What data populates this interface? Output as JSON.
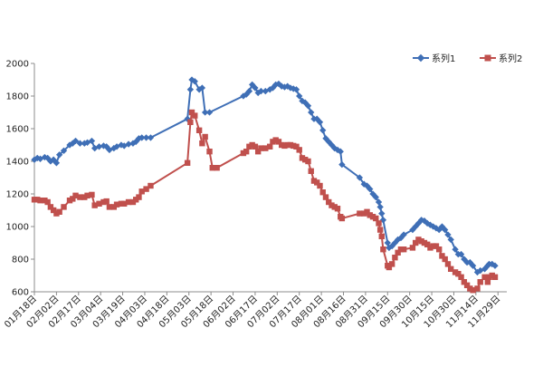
{
  "chart_data": {
    "type": "line",
    "title": "",
    "xlabel": "",
    "ylabel": "",
    "ylim": [
      600,
      2000
    ],
    "yticks": [
      600,
      800,
      1000,
      1200,
      1400,
      1600,
      1800,
      2000
    ],
    "grid": false,
    "legend": "top-right",
    "x_tick_labels": [
      "01月18日",
      "02月02日",
      "02月17日",
      "03月04日",
      "03月19日",
      "04月03日",
      "04月18日",
      "05月03日",
      "05月18日",
      "06月02日",
      "06月17日",
      "07月02日",
      "07月17日",
      "08月01日",
      "08月16日",
      "08月31日",
      "09月15日",
      "09月30日",
      "10月15日",
      "10月30日",
      "11月14日",
      "11月29日"
    ],
    "tick_interval_days": 15,
    "series": [
      {
        "name": "系列1",
        "color": "#3f6fb6",
        "marker": "diamond",
        "points": [
          [
            0,
            1410
          ],
          [
            2,
            1420
          ],
          [
            4,
            1415
          ],
          [
            7,
            1425
          ],
          [
            9,
            1420
          ],
          [
            11,
            1400
          ],
          [
            13,
            1410
          ],
          [
            15,
            1390
          ],
          [
            17,
            1440
          ],
          [
            20,
            1465
          ],
          [
            24,
            1500
          ],
          [
            26,
            1510
          ],
          [
            28,
            1525
          ],
          [
            31,
            1510
          ],
          [
            34,
            1510
          ],
          [
            36,
            1515
          ],
          [
            39,
            1525
          ],
          [
            41,
            1480
          ],
          [
            44,
            1490
          ],
          [
            47,
            1495
          ],
          [
            49,
            1490
          ],
          [
            51,
            1470
          ],
          [
            54,
            1480
          ],
          [
            56,
            1490
          ],
          [
            59,
            1500
          ],
          [
            61,
            1495
          ],
          [
            64,
            1505
          ],
          [
            67,
            1510
          ],
          [
            69,
            1520
          ],
          [
            71,
            1540
          ],
          [
            73,
            1545
          ],
          [
            76,
            1545
          ],
          [
            79,
            1545
          ],
          [
            104,
            1660
          ],
          [
            106,
            1840
          ],
          [
            107,
            1900
          ],
          [
            109,
            1890
          ],
          [
            112,
            1840
          ],
          [
            114,
            1850
          ],
          [
            116,
            1700
          ],
          [
            119,
            1700
          ],
          [
            142,
            1800
          ],
          [
            144,
            1810
          ],
          [
            146,
            1830
          ],
          [
            148,
            1870
          ],
          [
            150,
            1850
          ],
          [
            152,
            1820
          ],
          [
            154,
            1830
          ],
          [
            157,
            1830
          ],
          [
            160,
            1840
          ],
          [
            162,
            1850
          ],
          [
            164,
            1870
          ],
          [
            166,
            1875
          ],
          [
            168,
            1860
          ],
          [
            170,
            1855
          ],
          [
            172,
            1860
          ],
          [
            174,
            1850
          ],
          [
            176,
            1845
          ],
          [
            178,
            1840
          ],
          [
            180,
            1800
          ],
          [
            182,
            1770
          ],
          [
            184,
            1760
          ],
          [
            186,
            1740
          ],
          [
            188,
            1700
          ],
          [
            190,
            1660
          ],
          [
            192,
            1660
          ],
          [
            194,
            1640
          ],
          [
            196,
            1590
          ],
          [
            198,
            1540
          ],
          [
            200,
            1520
          ],
          [
            202,
            1500
          ],
          [
            204,
            1480
          ],
          [
            206,
            1470
          ],
          [
            208,
            1460
          ],
          [
            209,
            1380
          ],
          [
            221,
            1300
          ],
          [
            224,
            1260
          ],
          [
            226,
            1250
          ],
          [
            228,
            1230
          ],
          [
            230,
            1200
          ],
          [
            232,
            1180
          ],
          [
            234,
            1150
          ],
          [
            235,
            1120
          ],
          [
            236,
            1080
          ],
          [
            237,
            1040
          ],
          [
            240,
            900
          ],
          [
            241,
            870
          ],
          [
            243,
            880
          ],
          [
            245,
            900
          ],
          [
            247,
            920
          ],
          [
            249,
            930
          ],
          [
            251,
            950
          ],
          [
            257,
            980
          ],
          [
            259,
            1000
          ],
          [
            261,
            1020
          ],
          [
            263,
            1040
          ],
          [
            265,
            1035
          ],
          [
            267,
            1020
          ],
          [
            269,
            1010
          ],
          [
            271,
            1000
          ],
          [
            273,
            990
          ],
          [
            275,
            980
          ],
          [
            277,
            1000
          ],
          [
            279,
            980
          ],
          [
            281,
            950
          ],
          [
            283,
            920
          ],
          [
            286,
            860
          ],
          [
            288,
            830
          ],
          [
            290,
            830
          ],
          [
            292,
            800
          ],
          [
            294,
            780
          ],
          [
            296,
            780
          ],
          [
            298,
            760
          ],
          [
            301,
            720
          ],
          [
            303,
            730
          ],
          [
            306,
            740
          ],
          [
            308,
            760
          ],
          [
            309,
            770
          ],
          [
            311,
            770
          ],
          [
            313,
            760
          ]
        ]
      },
      {
        "name": "系列2",
        "color": "#c0504d",
        "marker": "square",
        "points": [
          [
            0,
            1165
          ],
          [
            2,
            1165
          ],
          [
            4,
            1160
          ],
          [
            7,
            1160
          ],
          [
            9,
            1150
          ],
          [
            11,
            1120
          ],
          [
            13,
            1100
          ],
          [
            15,
            1080
          ],
          [
            17,
            1090
          ],
          [
            20,
            1120
          ],
          [
            24,
            1160
          ],
          [
            26,
            1170
          ],
          [
            28,
            1190
          ],
          [
            31,
            1180
          ],
          [
            34,
            1180
          ],
          [
            36,
            1190
          ],
          [
            39,
            1195
          ],
          [
            41,
            1130
          ],
          [
            44,
            1140
          ],
          [
            47,
            1150
          ],
          [
            49,
            1155
          ],
          [
            51,
            1120
          ],
          [
            54,
            1120
          ],
          [
            56,
            1135
          ],
          [
            59,
            1140
          ],
          [
            61,
            1140
          ],
          [
            64,
            1150
          ],
          [
            67,
            1150
          ],
          [
            69,
            1165
          ],
          [
            71,
            1180
          ],
          [
            73,
            1215
          ],
          [
            76,
            1230
          ],
          [
            79,
            1250
          ],
          [
            104,
            1390
          ],
          [
            106,
            1640
          ],
          [
            107,
            1700
          ],
          [
            109,
            1680
          ],
          [
            112,
            1590
          ],
          [
            114,
            1510
          ],
          [
            116,
            1550
          ],
          [
            119,
            1460
          ],
          [
            121,
            1360
          ],
          [
            124,
            1360
          ],
          [
            142,
            1450
          ],
          [
            144,
            1460
          ],
          [
            146,
            1490
          ],
          [
            148,
            1500
          ],
          [
            150,
            1490
          ],
          [
            152,
            1460
          ],
          [
            154,
            1480
          ],
          [
            157,
            1480
          ],
          [
            160,
            1490
          ],
          [
            162,
            1520
          ],
          [
            164,
            1530
          ],
          [
            166,
            1520
          ],
          [
            168,
            1500
          ],
          [
            170,
            1495
          ],
          [
            172,
            1500
          ],
          [
            174,
            1500
          ],
          [
            176,
            1495
          ],
          [
            178,
            1490
          ],
          [
            180,
            1470
          ],
          [
            182,
            1420
          ],
          [
            184,
            1410
          ],
          [
            186,
            1400
          ],
          [
            188,
            1340
          ],
          [
            190,
            1280
          ],
          [
            192,
            1270
          ],
          [
            194,
            1250
          ],
          [
            196,
            1210
          ],
          [
            198,
            1180
          ],
          [
            200,
            1150
          ],
          [
            202,
            1130
          ],
          [
            204,
            1120
          ],
          [
            206,
            1110
          ],
          [
            208,
            1060
          ],
          [
            209,
            1050
          ],
          [
            221,
            1080
          ],
          [
            224,
            1080
          ],
          [
            226,
            1090
          ],
          [
            228,
            1070
          ],
          [
            230,
            1060
          ],
          [
            232,
            1050
          ],
          [
            234,
            1020
          ],
          [
            235,
            980
          ],
          [
            236,
            940
          ],
          [
            237,
            860
          ],
          [
            240,
            760
          ],
          [
            241,
            750
          ],
          [
            243,
            770
          ],
          [
            245,
            810
          ],
          [
            247,
            840
          ],
          [
            249,
            860
          ],
          [
            251,
            860
          ],
          [
            257,
            870
          ],
          [
            259,
            900
          ],
          [
            261,
            920
          ],
          [
            263,
            910
          ],
          [
            265,
            900
          ],
          [
            267,
            890
          ],
          [
            269,
            870
          ],
          [
            271,
            880
          ],
          [
            273,
            880
          ],
          [
            275,
            860
          ],
          [
            277,
            820
          ],
          [
            279,
            800
          ],
          [
            281,
            770
          ],
          [
            283,
            740
          ],
          [
            286,
            720
          ],
          [
            288,
            710
          ],
          [
            290,
            690
          ],
          [
            292,
            660
          ],
          [
            294,
            640
          ],
          [
            296,
            620
          ],
          [
            298,
            610
          ],
          [
            301,
            620
          ],
          [
            303,
            660
          ],
          [
            306,
            690
          ],
          [
            308,
            660
          ],
          [
            309,
            690
          ],
          [
            311,
            700
          ],
          [
            313,
            690
          ]
        ]
      }
    ]
  }
}
